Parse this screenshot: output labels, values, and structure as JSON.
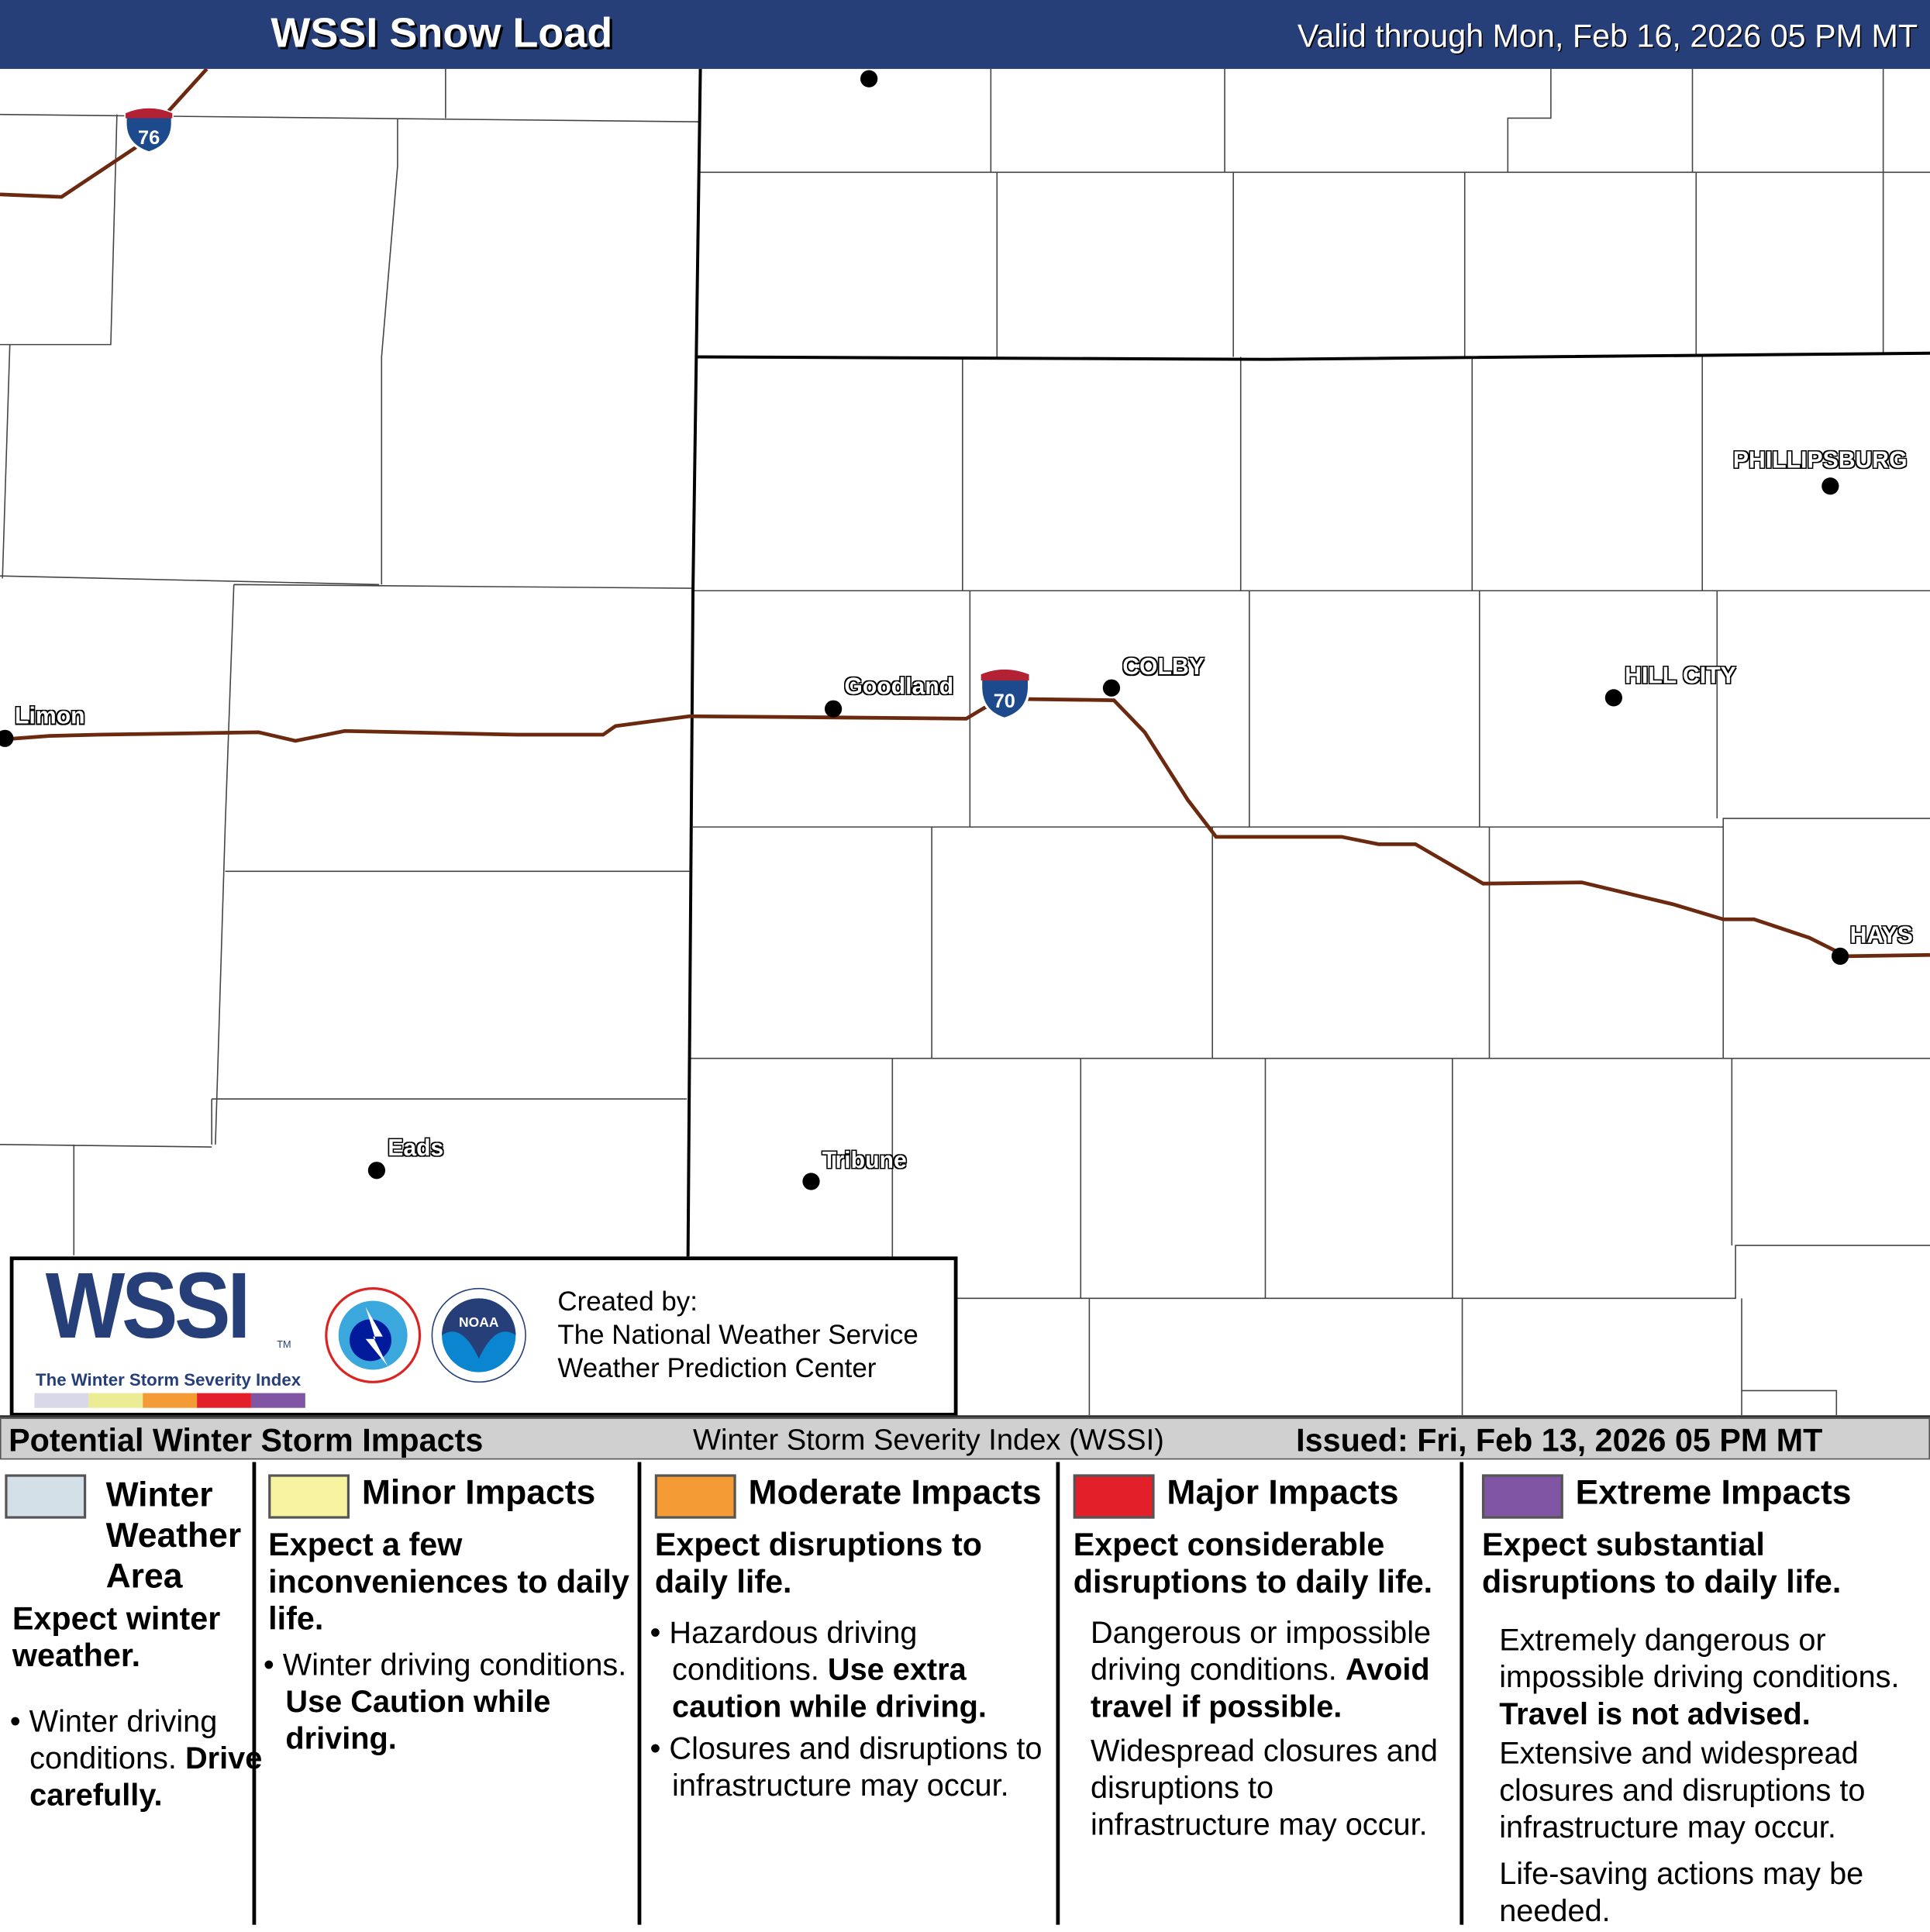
{
  "header": {
    "title": "WSSI Snow Load",
    "valid": "Valid through Mon, Feb 16, 2026 05 PM MT"
  },
  "map": {
    "cities": [
      {
        "name": "Limon"
      },
      {
        "name": "Goodland"
      },
      {
        "name": "COLBY"
      },
      {
        "name": "HILL CITY"
      },
      {
        "name": "PHILLIPSBURG"
      },
      {
        "name": "HAYS"
      },
      {
        "name": "Eads"
      },
      {
        "name": "Tribune"
      }
    ],
    "highways": [
      "76",
      "70"
    ],
    "colors": {
      "road": "#6b2a10",
      "shield_blue": "#1c4a8c",
      "shield_red": "#b22234"
    }
  },
  "logo": {
    "wssi": "WSSI",
    "tm": "TM",
    "subtitle": "The Winter Storm Severity Index",
    "created_by": "Created by:",
    "org1": "The National Weather Service",
    "org2": "Weather Prediction Center",
    "colors": [
      "#d8d8e8",
      "#ecec94",
      "#f59b35",
      "#e3202a",
      "#7f55a4"
    ]
  },
  "legend": {
    "title": "Potential Winter Storm Impacts",
    "center": "Winter Storm Severity Index (WSSI)",
    "issued": "Issued: Fri, Feb 13, 2026 05 PM MT",
    "categories": [
      {
        "title": "Winter Weather Area",
        "color": "#d3e0e8",
        "summary": "Expect winter weather.",
        "b1": "Winter driving conditions.",
        "b1b": "Drive carefully."
      },
      {
        "title": "Minor Impacts",
        "color": "#f7f3a0",
        "summary": "Expect a few inconveniences to daily life.",
        "b1": "Winter driving conditions.",
        "b1b": "Use Caution while driving."
      },
      {
        "title": "Moderate Impacts",
        "color": "#f59b35",
        "summary": "Expect disruptions to daily life.",
        "b1": "Hazardous driving conditions.",
        "b1b": "Use extra caution while driving.",
        "b2": "Closures and disruptions to infrastructure may occur."
      },
      {
        "title": "Major Impacts",
        "color": "#e3202a",
        "summary": "Expect considerable disruptions to daily life.",
        "b1": "Dangerous or impossible driving conditions.",
        "b1b": "Avoid travel if possible.",
        "b2": "Widespread closures and disruptions to infrastructure may occur."
      },
      {
        "title": "Extreme Impacts",
        "color": "#7f55a4",
        "summary": "Expect substantial disruptions to daily life.",
        "b1": "Extremely dangerous or impossible driving conditions.",
        "b1b": "Travel is not advised.",
        "b2": "Extensive and widespread closures and disruptions to infrastructure may occur.",
        "b3": "Life-saving actions may be needed."
      }
    ]
  }
}
